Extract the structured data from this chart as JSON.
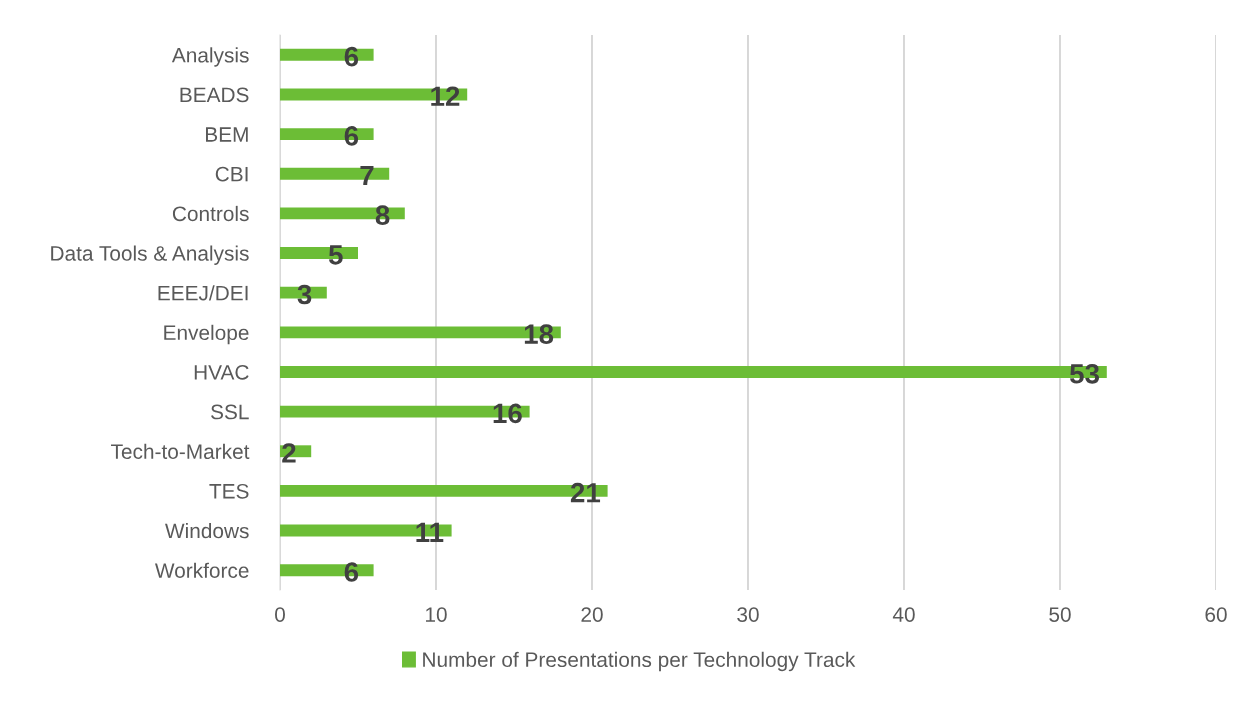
{
  "chart_data": {
    "type": "bar",
    "orientation": "horizontal",
    "categories": [
      "Analysis",
      "BEADS",
      "BEM",
      "CBI",
      "Controls",
      "Data Tools & Analysis",
      "EEEJ/DEI",
      "Envelope",
      "HVAC",
      "SSL",
      "Tech-to-Market",
      "TES",
      "Windows",
      "Workforce"
    ],
    "series": [
      {
        "name": "Number of Presentations per Technology Track",
        "color": "#6cbd36",
        "values": [
          6,
          12,
          6,
          7,
          8,
          5,
          3,
          18,
          53,
          16,
          2,
          21,
          11,
          6
        ]
      }
    ],
    "xlim": [
      0,
      60
    ],
    "xticks": [
      0,
      10,
      20,
      30,
      40,
      50,
      60
    ],
    "grid": "x",
    "legend": "bottom",
    "data_labels": true
  }
}
